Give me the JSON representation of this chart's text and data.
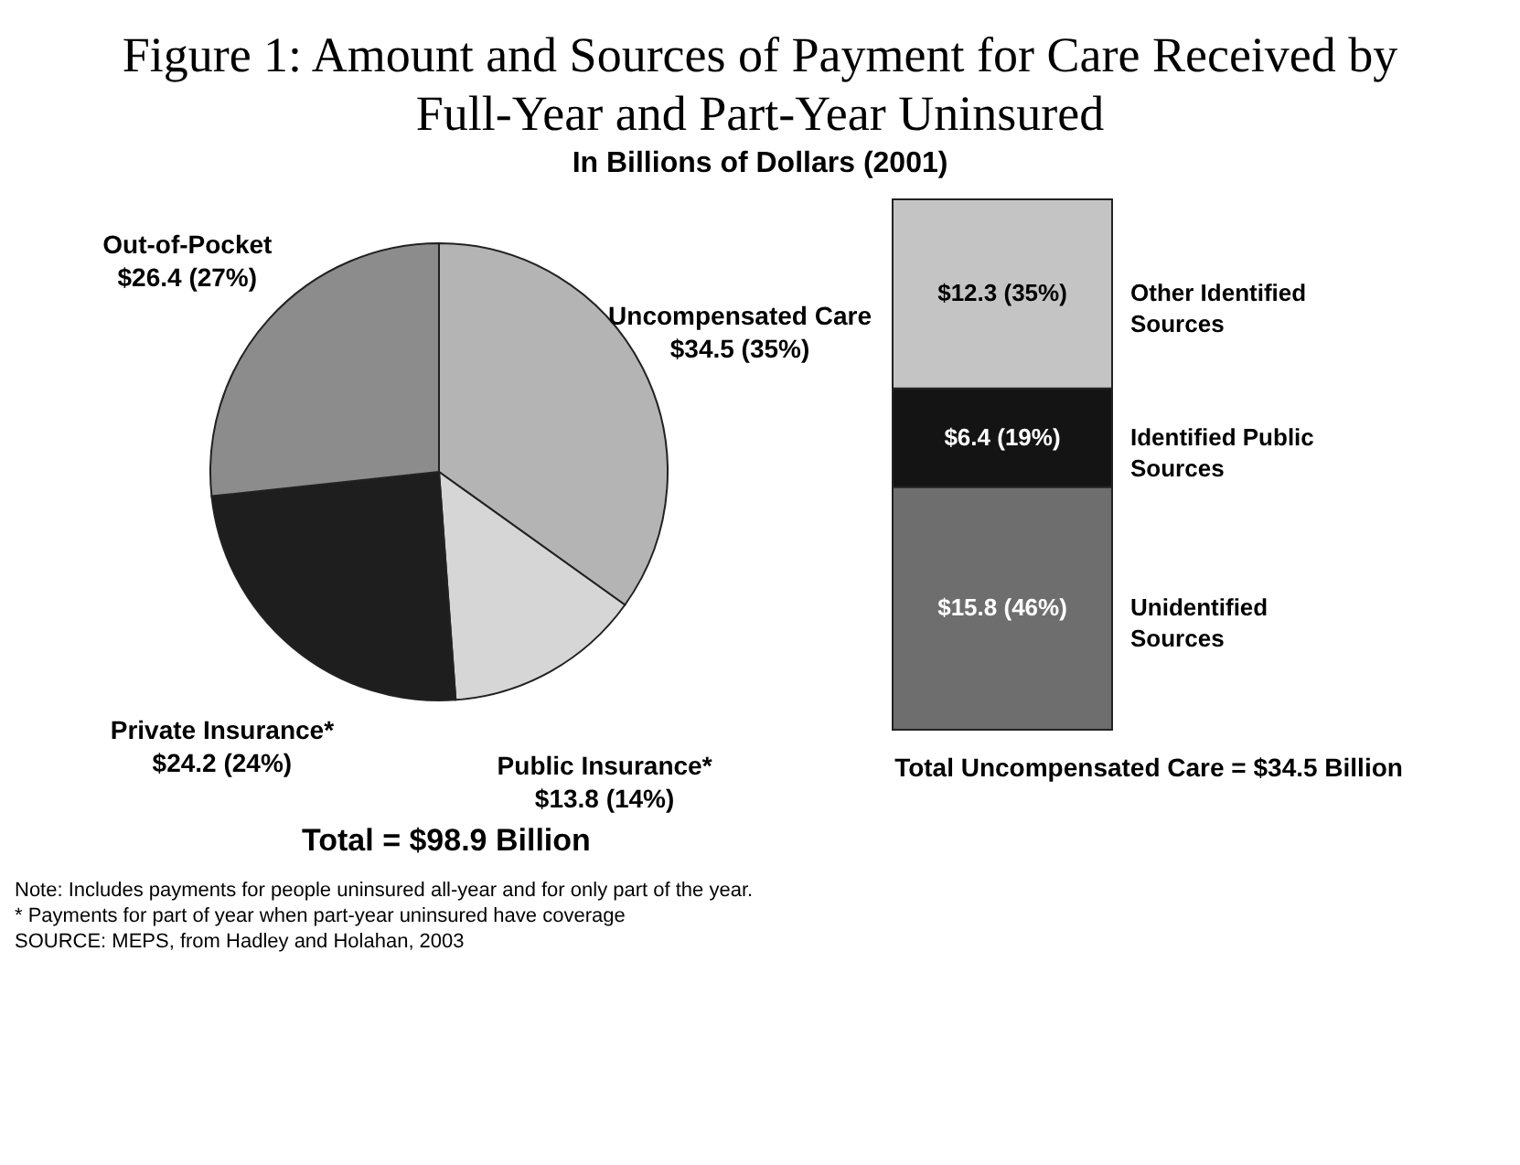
{
  "chart_data": [
    {
      "type": "pie",
      "title": "Figure 1: Amount and Sources of Payment for Care Received by Full-Year and Part-Year Uninsured",
      "subtitle": "In Billions of Dollars (2001)",
      "categories": [
        "Uncompensated Care",
        "Public Insurance*",
        "Private Insurance*",
        "Out-of-Pocket"
      ],
      "values": [
        34.5,
        13.8,
        24.2,
        26.4
      ],
      "value_labels": [
        "$34.5 (35%)",
        "$13.8 (14%)",
        "$24.2 (24%)",
        "$26.4 (27%)"
      ],
      "colors": [
        "#b4b4b4",
        "#d6d6d6",
        "#1e1e1e",
        "#8c8c8c"
      ],
      "annotations": [
        "Total = $98.9 Billion",
        "Note: Includes payments for people uninsured all-year and for only part of the year.",
        "* Payments for part of year when part-year uninsured have coverage",
        "SOURCE: MEPS, from Hadley and Holahan, 2003"
      ]
    },
    {
      "type": "bar",
      "stacked": true,
      "xlabel": "Total Uncompensated Care = $34.5 Billion",
      "categories": [
        null
      ],
      "series": [
        {
          "name": "Unidentified Sources",
          "color": "#6e6e6e",
          "values": [
            15.8
          ],
          "value_labels": [
            "$15.8 (46%)"
          ]
        },
        {
          "name": "Identified Public Sources",
          "color": "#141414",
          "values": [
            6.4
          ],
          "value_labels": [
            "$6.4 (19%)"
          ]
        },
        {
          "name": "Other Identified Sources",
          "color": "#c4c4c4",
          "values": [
            12.3
          ],
          "value_labels": [
            "$12.3  (35%)"
          ]
        }
      ]
    }
  ]
}
